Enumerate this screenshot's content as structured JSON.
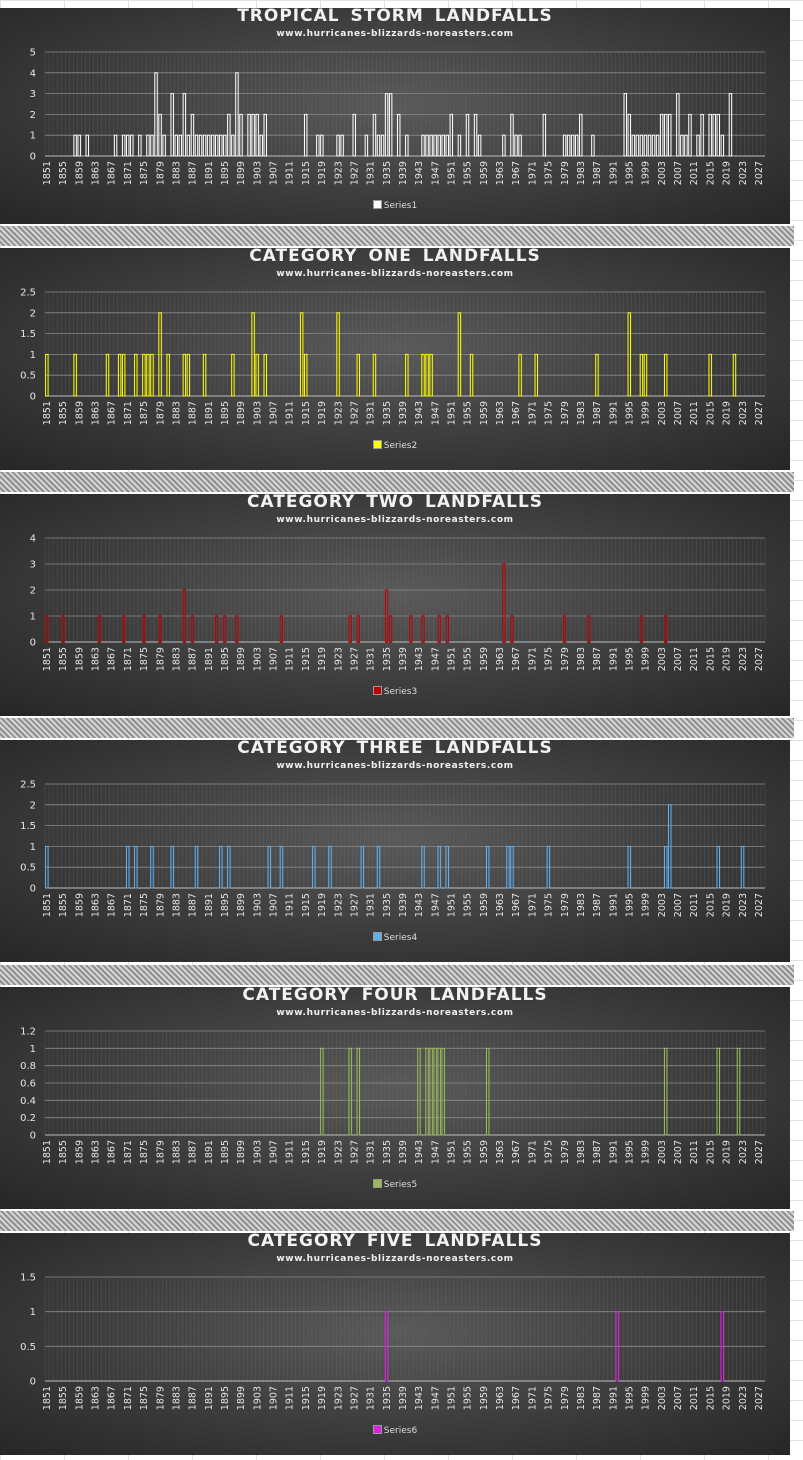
{
  "chart_data": [
    {
      "type": "bar",
      "title": "TROPICAL  STORM  LANDFALLS",
      "subtitle": "www.hurricanes-blizzards-noreasters.com",
      "color": "#ffffff",
      "ylim": [
        0,
        5
      ],
      "yticks": [
        "0",
        "1",
        "2",
        "3",
        "4",
        "5"
      ],
      "series": [
        {
          "name": "Series1",
          "values": [
            [
              1858,
              1
            ],
            [
              1859,
              1
            ],
            [
              1861,
              1
            ],
            [
              1868,
              1
            ],
            [
              1870,
              1
            ],
            [
              1871,
              1
            ],
            [
              1872,
              1
            ],
            [
              1874,
              1
            ],
            [
              1876,
              1
            ],
            [
              1877,
              1
            ],
            [
              1878,
              4
            ],
            [
              1879,
              2
            ],
            [
              1880,
              1
            ],
            [
              1882,
              3
            ],
            [
              1883,
              1
            ],
            [
              1884,
              1
            ],
            [
              1885,
              3
            ],
            [
              1886,
              1
            ],
            [
              1887,
              2
            ],
            [
              1888,
              1
            ],
            [
              1889,
              1
            ],
            [
              1890,
              1
            ],
            [
              1891,
              1
            ],
            [
              1892,
              1
            ],
            [
              1893,
              1
            ],
            [
              1894,
              1
            ],
            [
              1895,
              1
            ],
            [
              1896,
              2
            ],
            [
              1897,
              1
            ],
            [
              1898,
              4
            ],
            [
              1899,
              2
            ],
            [
              1901,
              2
            ],
            [
              1902,
              2
            ],
            [
              1903,
              2
            ],
            [
              1904,
              1
            ],
            [
              1905,
              2
            ],
            [
              1915,
              2
            ],
            [
              1918,
              1
            ],
            [
              1919,
              1
            ],
            [
              1923,
              1
            ],
            [
              1924,
              1
            ],
            [
              1927,
              2
            ],
            [
              1930,
              1
            ],
            [
              1932,
              2
            ],
            [
              1933,
              1
            ],
            [
              1934,
              1
            ],
            [
              1935,
              3
            ],
            [
              1936,
              3
            ],
            [
              1938,
              2
            ],
            [
              1940,
              1
            ],
            [
              1944,
              1
            ],
            [
              1945,
              1
            ],
            [
              1946,
              1
            ],
            [
              1947,
              1
            ],
            [
              1948,
              1
            ],
            [
              1949,
              1
            ],
            [
              1950,
              1
            ],
            [
              1951,
              2
            ],
            [
              1953,
              1
            ],
            [
              1955,
              2
            ],
            [
              1957,
              2
            ],
            [
              1958,
              1
            ],
            [
              1964,
              1
            ],
            [
              1966,
              2
            ],
            [
              1967,
              1
            ],
            [
              1968,
              1
            ],
            [
              1974,
              2
            ],
            [
              1979,
              1
            ],
            [
              1980,
              1
            ],
            [
              1981,
              1
            ],
            [
              1982,
              1
            ],
            [
              1983,
              2
            ],
            [
              1986,
              1
            ],
            [
              1994,
              3
            ],
            [
              1995,
              2
            ],
            [
              1996,
              1
            ],
            [
              1997,
              1
            ],
            [
              1998,
              1
            ],
            [
              1999,
              1
            ],
            [
              2000,
              1
            ],
            [
              2001,
              1
            ],
            [
              2002,
              1
            ],
            [
              2003,
              2
            ],
            [
              2004,
              2
            ],
            [
              2005,
              2
            ],
            [
              2007,
              3
            ],
            [
              2008,
              1
            ],
            [
              2009,
              1
            ],
            [
              2010,
              2
            ],
            [
              2012,
              1
            ],
            [
              2013,
              2
            ],
            [
              2015,
              2
            ],
            [
              2016,
              2
            ],
            [
              2017,
              2
            ],
            [
              2018,
              1
            ],
            [
              2020,
              3
            ]
          ]
        }
      ]
    },
    {
      "type": "bar",
      "title": "CATEGORY  ONE  LANDFALLS",
      "subtitle": "www.hurricanes-blizzards-noreasters.com",
      "color": "#ffff00",
      "ylim": [
        0,
        2.5
      ],
      "yticks": [
        "0",
        "0.5",
        "1",
        "1.5",
        "2",
        "2.5"
      ],
      "series": [
        {
          "name": "Series2",
          "values": [
            [
              1851,
              1
            ],
            [
              1858,
              1
            ],
            [
              1866,
              1
            ],
            [
              1869,
              1
            ],
            [
              1870,
              1
            ],
            [
              1873,
              1
            ],
            [
              1875,
              1
            ],
            [
              1876,
              1
            ],
            [
              1877,
              1
            ],
            [
              1879,
              2
            ],
            [
              1881,
              1
            ],
            [
              1885,
              1
            ],
            [
              1886,
              1
            ],
            [
              1890,
              1
            ],
            [
              1897,
              1
            ],
            [
              1902,
              2
            ],
            [
              1903,
              1
            ],
            [
              1905,
              1
            ],
            [
              1914,
              2
            ],
            [
              1915,
              1
            ],
            [
              1923,
              2
            ],
            [
              1928,
              1
            ],
            [
              1932,
              1
            ],
            [
              1940,
              1
            ],
            [
              1944,
              1
            ],
            [
              1945,
              1
            ],
            [
              1946,
              1
            ],
            [
              1953,
              2
            ],
            [
              1956,
              1
            ],
            [
              1968,
              1
            ],
            [
              1972,
              1
            ],
            [
              1987,
              1
            ],
            [
              1995,
              2
            ],
            [
              1998,
              1
            ],
            [
              1999,
              1
            ],
            [
              2004,
              1
            ],
            [
              2015,
              1
            ],
            [
              2021,
              1
            ]
          ]
        }
      ]
    },
    {
      "type": "bar",
      "title": "CATEGORY  TWO  LANDFALLS",
      "subtitle": "www.hurricanes-blizzards-noreasters.com",
      "color": "#c00000",
      "ylim": [
        0,
        4
      ],
      "yticks": [
        "0",
        "1",
        "2",
        "3",
        "4"
      ],
      "series": [
        {
          "name": "Series3",
          "values": [
            [
              1851,
              1
            ],
            [
              1855,
              1
            ],
            [
              1864,
              1
            ],
            [
              1870,
              1
            ],
            [
              1875,
              1
            ],
            [
              1879,
              1
            ],
            [
              1885,
              2
            ],
            [
              1887,
              1
            ],
            [
              1893,
              1
            ],
            [
              1895,
              1
            ],
            [
              1898,
              1
            ],
            [
              1909,
              1
            ],
            [
              1926,
              1
            ],
            [
              1928,
              1
            ],
            [
              1935,
              2
            ],
            [
              1936,
              1
            ],
            [
              1941,
              1
            ],
            [
              1944,
              1
            ],
            [
              1948,
              1
            ],
            [
              1950,
              1
            ],
            [
              1964,
              3
            ],
            [
              1966,
              1
            ],
            [
              1979,
              1
            ],
            [
              1985,
              1
            ],
            [
              1998,
              1
            ],
            [
              2004,
              1
            ]
          ]
        }
      ]
    },
    {
      "type": "bar",
      "title": "CATEGORY  THREE  LANDFALLS",
      "subtitle": "www.hurricanes-blizzards-noreasters.com",
      "color": "#5fb0f0",
      "ylim": [
        0,
        2.5
      ],
      "yticks": [
        "0",
        "0.5",
        "1",
        "1.5",
        "2",
        "2.5"
      ],
      "series": [
        {
          "name": "Series4",
          "values": [
            [
              1851,
              1
            ],
            [
              1871,
              1
            ],
            [
              1873,
              1
            ],
            [
              1877,
              1
            ],
            [
              1882,
              1
            ],
            [
              1888,
              1
            ],
            [
              1894,
              1
            ],
            [
              1896,
              1
            ],
            [
              1906,
              1
            ],
            [
              1909,
              1
            ],
            [
              1917,
              1
            ],
            [
              1921,
              1
            ],
            [
              1929,
              1
            ],
            [
              1933,
              1
            ],
            [
              1944,
              1
            ],
            [
              1948,
              1
            ],
            [
              1950,
              1
            ],
            [
              1960,
              1
            ],
            [
              1965,
              1
            ],
            [
              1966,
              1
            ],
            [
              1975,
              1
            ],
            [
              1995,
              1
            ],
            [
              2004,
              1
            ],
            [
              2005,
              2
            ],
            [
              2017,
              1
            ],
            [
              2023,
              1
            ]
          ]
        }
      ]
    },
    {
      "type": "bar",
      "title": "CATEGORY  FOUR  LANDFALLS",
      "subtitle": "www.hurricanes-blizzards-noreasters.com",
      "color": "#9bbb59",
      "ylim": [
        0,
        1.2
      ],
      "yticks": [
        "0",
        "0.2",
        "0.4",
        "0.6",
        "0.8",
        "1",
        "1.2"
      ],
      "series": [
        {
          "name": "Series5",
          "values": [
            [
              1919,
              1
            ],
            [
              1926,
              1
            ],
            [
              1928,
              1
            ],
            [
              1943,
              1
            ],
            [
              1945,
              1
            ],
            [
              1946,
              1
            ],
            [
              1947,
              1
            ],
            [
              1948,
              1
            ],
            [
              1949,
              1
            ],
            [
              1960,
              1
            ],
            [
              2004,
              1
            ],
            [
              2017,
              1
            ],
            [
              2022,
              1
            ]
          ]
        }
      ]
    },
    {
      "type": "bar",
      "title": "CATEGORY  FIVE  LANDFALLS",
      "subtitle": "www.hurricanes-blizzards-noreasters.com",
      "color": "#e020e0",
      "ylim": [
        0,
        1.5
      ],
      "yticks": [
        "0",
        "0.5",
        "1",
        "1.5"
      ],
      "series": [
        {
          "name": "Series6",
          "values": [
            [
              1935,
              1
            ],
            [
              1992,
              1
            ],
            [
              2018,
              1
            ]
          ]
        }
      ]
    }
  ],
  "x_axis": {
    "min": 1851,
    "max": 2029,
    "tick_labels": [
      "1851",
      "1855",
      "1859",
      "1863",
      "1867",
      "1871",
      "1875",
      "1879",
      "1883",
      "1887",
      "1891",
      "1895",
      "1899",
      "1903",
      "1907",
      "1911",
      "1915",
      "1919",
      "1923",
      "1927",
      "1931",
      "1935",
      "1939",
      "1943",
      "1947",
      "1951",
      "1955",
      "1959",
      "1963",
      "1967",
      "1971",
      "1975",
      "1979",
      "1983",
      "1987",
      "1991",
      "1995",
      "1999",
      "2003",
      "2007",
      "2011",
      "2015",
      "2019",
      "2023",
      "2027"
    ]
  },
  "gridlines": true
}
